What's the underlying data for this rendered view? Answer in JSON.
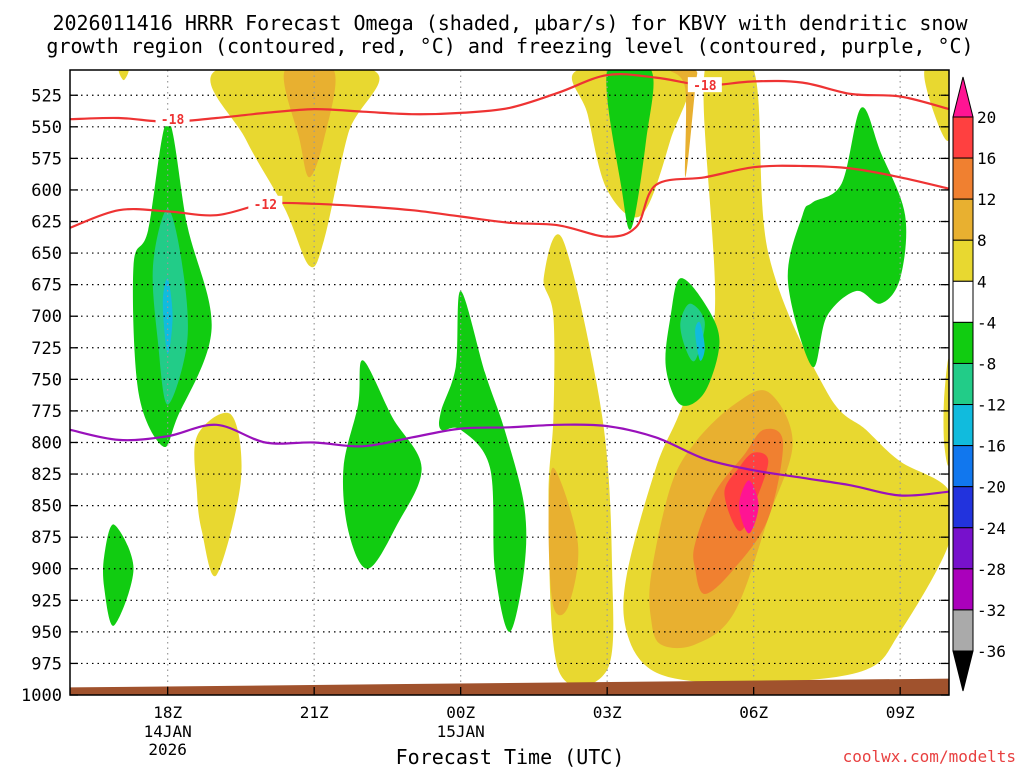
{
  "chart_data": {
    "type": "heatmap",
    "title_line1": "2026011416 HRRR Forecast Omega (shaded, μbar/s) for KBVY with dendritic snow",
    "title_line2": "growth region (contoured, red, °C) and freezing level (contoured, purple, °C)",
    "xlabel": "Forecast Time (UTC)",
    "credit": "coolwx.com/modelts",
    "x_range_hours": [
      16.0,
      34.0
    ],
    "y_range_hpa": [
      505,
      1000
    ],
    "x_ticks": [
      {
        "hour": 18,
        "label": "18Z",
        "sub1": "14JAN",
        "sub2": "2026"
      },
      {
        "hour": 21,
        "label": "21Z",
        "sub1": "",
        "sub2": ""
      },
      {
        "hour": 24,
        "label": "00Z",
        "sub1": "15JAN",
        "sub2": ""
      },
      {
        "hour": 27,
        "label": "03Z",
        "sub1": "",
        "sub2": ""
      },
      {
        "hour": 30,
        "label": "06Z",
        "sub1": "",
        "sub2": ""
      },
      {
        "hour": 33,
        "label": "09Z",
        "sub1": "",
        "sub2": ""
      }
    ],
    "y_ticks": [
      "525",
      "550",
      "575",
      "600",
      "625",
      "650",
      "675",
      "700",
      "725",
      "750",
      "775",
      "800",
      "825",
      "850",
      "875",
      "900",
      "925",
      "950",
      "975",
      "1000"
    ],
    "colorbar": {
      "labels": [
        "20",
        "16",
        "12",
        "8",
        "4",
        "-4",
        "-8",
        "-12",
        "-16",
        "-20",
        "-24",
        "-28",
        "-32",
        "-36"
      ],
      "bins": [
        {
          "color": "#ff1493"
        },
        {
          "color": "#ff4040"
        },
        {
          "color": "#f08030"
        },
        {
          "color": "#e8b030"
        },
        {
          "color": "#e8d830"
        },
        {
          "color": "#ffffff"
        },
        {
          "color": "#11cc11"
        },
        {
          "color": "#22cc88"
        },
        {
          "color": "#11bbdd"
        },
        {
          "color": "#1177ee"
        },
        {
          "color": "#2233dd"
        },
        {
          "color": "#7711cc"
        },
        {
          "color": "#aa00bb"
        },
        {
          "color": "#aaaaaa"
        }
      ]
    },
    "contour_labels": [
      {
        "text": "-18",
        "hour": 18.1,
        "hpa": 544
      },
      {
        "text": "-18",
        "hour": 29.0,
        "hpa": 517
      },
      {
        "text": "-12",
        "hour": 20.0,
        "hpa": 611
      }
    ],
    "series": [
      {
        "name": "-18C isotherm",
        "color": "#ee3333",
        "points": [
          [
            16.0,
            544
          ],
          [
            17.0,
            543
          ],
          [
            18.0,
            546
          ],
          [
            19.0,
            543
          ],
          [
            20.0,
            539
          ],
          [
            21.0,
            536
          ],
          [
            22.0,
            538
          ],
          [
            23.0,
            540
          ],
          [
            24.0,
            539
          ],
          [
            25.0,
            535
          ],
          [
            26.0,
            523
          ],
          [
            27.0,
            509
          ],
          [
            28.0,
            511
          ],
          [
            29.0,
            517
          ],
          [
            30.0,
            514
          ],
          [
            31.0,
            515
          ],
          [
            32.0,
            524
          ],
          [
            33.0,
            526
          ],
          [
            34.0,
            536
          ]
        ]
      },
      {
        "name": "-12C isotherm",
        "color": "#ee3333",
        "points": [
          [
            16.0,
            630
          ],
          [
            17.0,
            616
          ],
          [
            18.0,
            617
          ],
          [
            19.0,
            620
          ],
          [
            20.0,
            611
          ],
          [
            21.0,
            611
          ],
          [
            22.0,
            613
          ],
          [
            23.0,
            616
          ],
          [
            24.0,
            621
          ],
          [
            25.0,
            626
          ],
          [
            26.0,
            628
          ],
          [
            27.0,
            637
          ],
          [
            27.6,
            629
          ],
          [
            28.0,
            596
          ],
          [
            29.0,
            590
          ],
          [
            30.0,
            582
          ],
          [
            31.0,
            581
          ],
          [
            32.0,
            583
          ],
          [
            33.0,
            590
          ],
          [
            34.0,
            599
          ]
        ]
      },
      {
        "name": "0C freezing level",
        "color": "#9911bb",
        "points": [
          [
            16.0,
            790
          ],
          [
            17.0,
            798
          ],
          [
            18.0,
            795
          ],
          [
            19.0,
            786
          ],
          [
            20.0,
            800
          ],
          [
            21.0,
            800
          ],
          [
            22.0,
            803
          ],
          [
            23.0,
            796
          ],
          [
            24.0,
            789
          ],
          [
            25.0,
            788
          ],
          [
            26.0,
            786
          ],
          [
            27.0,
            787
          ],
          [
            28.0,
            796
          ],
          [
            29.0,
            813
          ],
          [
            30.0,
            822
          ],
          [
            31.0,
            828
          ],
          [
            32.0,
            834
          ],
          [
            33.0,
            842
          ],
          [
            34.0,
            839
          ]
        ]
      }
    ],
    "shaded_regions": [
      {
        "color": "#e8d830",
        "points": [
          [
            17.0,
            505
          ],
          [
            17.1,
            513
          ],
          [
            17.2,
            505
          ]
        ]
      },
      {
        "color": "#e8d830",
        "points": [
          [
            19.0,
            505
          ],
          [
            19.6,
            560
          ],
          [
            20.4,
            615
          ],
          [
            20.9,
            660
          ],
          [
            21.2,
            640
          ],
          [
            21.7,
            555
          ],
          [
            22.2,
            505
          ]
        ]
      },
      {
        "color": "#e8b030",
        "points": [
          [
            20.4,
            505
          ],
          [
            20.7,
            560
          ],
          [
            20.9,
            590
          ],
          [
            21.2,
            560
          ],
          [
            21.4,
            505
          ]
        ]
      },
      {
        "color": "#e8d830",
        "points": [
          [
            18.6,
            795
          ],
          [
            19.3,
            778
          ],
          [
            19.5,
            830
          ],
          [
            19.0,
            905
          ],
          [
            18.7,
            870
          ],
          [
            18.6,
            840
          ]
        ]
      },
      {
        "color": "#11cc11",
        "points": [
          [
            17.6,
            632
          ],
          [
            18.0,
            545
          ],
          [
            18.4,
            628
          ],
          [
            18.9,
            710
          ],
          [
            18.2,
            780
          ],
          [
            17.9,
            803
          ],
          [
            17.4,
            760
          ],
          [
            17.3,
            660
          ]
        ]
      },
      {
        "color": "#22cc88",
        "points": [
          [
            17.7,
            660
          ],
          [
            18.0,
            615
          ],
          [
            18.3,
            660
          ],
          [
            18.4,
            720
          ],
          [
            18.0,
            770
          ],
          [
            17.8,
            720
          ]
        ]
      },
      {
        "color": "#11bbdd",
        "points": [
          [
            17.9,
            690
          ],
          [
            18.0,
            670
          ],
          [
            18.1,
            700
          ],
          [
            18.0,
            730
          ]
        ]
      },
      {
        "color": "#11cc11",
        "points": [
          [
            16.7,
            890
          ],
          [
            16.9,
            865
          ],
          [
            17.3,
            900
          ],
          [
            16.9,
            945
          ],
          [
            16.7,
            915
          ]
        ]
      },
      {
        "color": "#11cc11",
        "points": [
          [
            21.6,
            820
          ],
          [
            21.9,
            770
          ],
          [
            22.0,
            735
          ],
          [
            22.6,
            780
          ],
          [
            23.2,
            820
          ],
          [
            22.7,
            865
          ],
          [
            22.1,
            900
          ],
          [
            21.7,
            870
          ]
        ]
      },
      {
        "color": "#11cc11",
        "points": [
          [
            23.6,
            775
          ],
          [
            23.9,
            740
          ],
          [
            24.0,
            680
          ],
          [
            24.5,
            745
          ],
          [
            24.9,
            790
          ],
          [
            25.3,
            850
          ],
          [
            25.3,
            900
          ],
          [
            25.0,
            950
          ],
          [
            24.7,
            900
          ],
          [
            24.6,
            820
          ],
          [
            24.0,
            790
          ],
          [
            23.6,
            790
          ]
        ]
      },
      {
        "color": "#e8d830",
        "points": [
          [
            25.7,
            670
          ],
          [
            26.1,
            640
          ],
          [
            26.9,
            780
          ],
          [
            27.1,
            900
          ],
          [
            27.0,
            980
          ],
          [
            26.0,
            980
          ],
          [
            25.8,
            850
          ],
          [
            25.9,
            780
          ],
          [
            25.9,
            700
          ]
        ]
      },
      {
        "color": "#e8b030",
        "points": [
          [
            25.8,
            870
          ],
          [
            25.9,
            820
          ],
          [
            26.4,
            880
          ],
          [
            26.2,
            930
          ],
          [
            25.9,
            930
          ]
        ]
      },
      {
        "color": "#e8d830",
        "points": [
          [
            27.4,
            905
          ],
          [
            28.0,
            820
          ],
          [
            28.5,
            775
          ],
          [
            29.2,
            700
          ],
          [
            29.0,
            505
          ],
          [
            30.0,
            505
          ],
          [
            30.3,
            650
          ],
          [
            31.5,
            760
          ],
          [
            32.3,
            790
          ],
          [
            33.0,
            815
          ],
          [
            34.0,
            838
          ],
          [
            34.0,
            880
          ],
          [
            33.0,
            950
          ],
          [
            32.3,
            980
          ],
          [
            30.5,
            990
          ],
          [
            29.0,
            990
          ],
          [
            27.9,
            980
          ],
          [
            27.4,
            950
          ]
        ]
      },
      {
        "color": "#e8d830",
        "points": [
          [
            26.4,
            505
          ],
          [
            26.6,
            540
          ],
          [
            27.0,
            600
          ],
          [
            27.7,
            620
          ],
          [
            28.3,
            560
          ],
          [
            28.6,
            505
          ]
        ]
      },
      {
        "color": "#e8d830",
        "points": [
          [
            33.5,
            505
          ],
          [
            34.0,
            505
          ],
          [
            34.0,
            560
          ],
          [
            33.7,
            540
          ]
        ]
      },
      {
        "color": "#e8d830",
        "points": [
          [
            33.9,
            765
          ],
          [
            34.0,
            735
          ],
          [
            34.0,
            815
          ],
          [
            33.9,
            800
          ]
        ]
      },
      {
        "color": "#e8b030",
        "points": [
          [
            28.3,
            505
          ],
          [
            28.6,
            520
          ],
          [
            28.6,
            590
          ],
          [
            28.8,
            520
          ],
          [
            28.8,
            505
          ]
        ]
      },
      {
        "color": "#11cc11",
        "points": [
          [
            27.0,
            505
          ],
          [
            27.3,
            600
          ],
          [
            27.5,
            630
          ],
          [
            27.8,
            560
          ],
          [
            27.9,
            505
          ]
        ]
      },
      {
        "color": "#11cc11",
        "points": [
          [
            30.7,
            672
          ],
          [
            31.0,
            620
          ],
          [
            31.2,
            610
          ],
          [
            31.8,
            595
          ],
          [
            32.2,
            535
          ],
          [
            32.6,
            570
          ],
          [
            33.1,
            620
          ],
          [
            33.0,
            670
          ],
          [
            32.6,
            690
          ],
          [
            32.1,
            680
          ],
          [
            31.5,
            700
          ],
          [
            31.2,
            740
          ]
        ]
      },
      {
        "color": "#11cc11",
        "points": [
          [
            28.3,
            700
          ],
          [
            28.5,
            670
          ],
          [
            29.0,
            690
          ],
          [
            29.3,
            720
          ],
          [
            29.0,
            760
          ],
          [
            28.5,
            770
          ],
          [
            28.2,
            740
          ]
        ]
      },
      {
        "color": "#22cc88",
        "points": [
          [
            28.5,
            705
          ],
          [
            28.7,
            690
          ],
          [
            29.0,
            705
          ],
          [
            28.8,
            735
          ],
          [
            28.6,
            725
          ]
        ]
      },
      {
        "color": "#11bbdd",
        "points": [
          [
            28.8,
            712
          ],
          [
            28.9,
            705
          ],
          [
            29.0,
            725
          ],
          [
            28.9,
            735
          ]
        ]
      },
      {
        "color": "#e8b030",
        "points": [
          [
            27.9,
            905
          ],
          [
            28.3,
            835
          ],
          [
            28.8,
            800
          ],
          [
            29.6,
            770
          ],
          [
            30.3,
            760
          ],
          [
            30.8,
            800
          ],
          [
            30.3,
            860
          ],
          [
            29.6,
            935
          ],
          [
            28.8,
            960
          ],
          [
            28.1,
            960
          ],
          [
            27.9,
            940
          ]
        ]
      },
      {
        "color": "#f08030",
        "points": [
          [
            28.8,
            880
          ],
          [
            29.2,
            840
          ],
          [
            29.8,
            810
          ],
          [
            30.2,
            790
          ],
          [
            30.6,
            800
          ],
          [
            30.3,
            860
          ],
          [
            29.6,
            900
          ],
          [
            29.0,
            920
          ],
          [
            28.8,
            900
          ]
        ]
      },
      {
        "color": "#ff4040",
        "points": [
          [
            29.4,
            840
          ],
          [
            29.7,
            820
          ],
          [
            30.0,
            808
          ],
          [
            30.3,
            815
          ],
          [
            30.0,
            850
          ],
          [
            29.7,
            870
          ]
        ]
      },
      {
        "color": "#ff1493",
        "points": [
          [
            29.7,
            850
          ],
          [
            29.9,
            830
          ],
          [
            30.1,
            850
          ],
          [
            29.9,
            872
          ]
        ]
      }
    ],
    "ground": {
      "color": "#a0522d"
    }
  }
}
